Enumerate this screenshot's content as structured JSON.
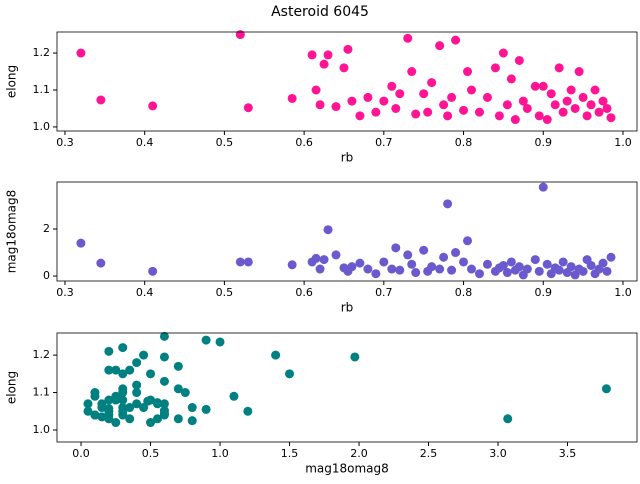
{
  "chart_data": [
    {
      "type": "scatter",
      "title": "Asteroid 6045",
      "xlabel": "rb",
      "ylabel": "elong",
      "color": "#ff1493",
      "xlim": [
        0.29,
        1.0176
      ],
      "ylim": [
        0.989,
        1.257
      ],
      "xticks": [
        0.3,
        0.4,
        0.5,
        0.6,
        0.7,
        0.8,
        0.9,
        {
          "value": 1,
          "label": "1.0"
        }
      ],
      "yticks": [
        {
          "value": 1,
          "label": "1.0"
        },
        1.1,
        1.2
      ],
      "x": [
        0.32,
        0.345,
        0.41,
        0.52,
        0.53,
        0.585,
        0.61,
        0.615,
        0.62,
        0.625,
        0.63,
        0.64,
        0.65,
        0.655,
        0.66,
        0.67,
        0.68,
        0.69,
        0.7,
        0.71,
        0.715,
        0.72,
        0.73,
        0.735,
        0.74,
        0.75,
        0.755,
        0.76,
        0.77,
        0.775,
        0.78,
        0.785,
        0.79,
        0.8,
        0.805,
        0.81,
        0.82,
        0.83,
        0.84,
        0.845,
        0.85,
        0.855,
        0.86,
        0.865,
        0.87,
        0.875,
        0.88,
        0.89,
        0.895,
        0.9,
        0.905,
        0.91,
        0.915,
        0.92,
        0.925,
        0.93,
        0.935,
        0.94,
        0.945,
        0.95,
        0.955,
        0.96,
        0.965,
        0.97,
        0.975,
        0.98,
        0.985
      ],
      "y": [
        1.2,
        1.073,
        1.057,
        1.25,
        1.052,
        1.077,
        1.195,
        1.1,
        1.06,
        1.17,
        1.195,
        1.055,
        1.16,
        1.21,
        1.07,
        1.03,
        1.08,
        1.04,
        1.07,
        1.11,
        1.05,
        1.09,
        1.24,
        1.15,
        1.035,
        1.09,
        1.04,
        1.12,
        1.22,
        1.06,
        1.03,
        1.08,
        1.235,
        1.045,
        1.15,
        1.1,
        1.04,
        1.08,
        1.16,
        1.03,
        1.2,
        1.06,
        1.13,
        1.02,
        1.18,
        1.07,
        1.05,
        1.11,
        1.03,
        1.11,
        1.02,
        1.09,
        1.06,
        1.16,
        1.04,
        1.07,
        1.1,
        1.05,
        1.15,
        1.08,
        1.03,
        1.06,
        1.1,
        1.04,
        1.07,
        1.05,
        1.025
      ]
    },
    {
      "type": "scatter",
      "xlabel": "rb",
      "ylabel": "mag18omag8",
      "color": "#6a5acd",
      "xlim": [
        0.29,
        1.0176
      ],
      "ylim": [
        -0.21,
        4.0
      ],
      "xticks": [
        0.3,
        0.4,
        0.5,
        0.6,
        0.7,
        0.8,
        0.9,
        {
          "value": 1,
          "label": "1.0"
        }
      ],
      "yticks": [
        0,
        2
      ],
      "x": [
        0.32,
        0.345,
        0.41,
        0.52,
        0.53,
        0.585,
        0.61,
        0.615,
        0.62,
        0.625,
        0.63,
        0.64,
        0.65,
        0.655,
        0.66,
        0.67,
        0.68,
        0.69,
        0.7,
        0.71,
        0.715,
        0.72,
        0.73,
        0.735,
        0.74,
        0.75,
        0.755,
        0.76,
        0.77,
        0.775,
        0.78,
        0.785,
        0.79,
        0.8,
        0.805,
        0.81,
        0.82,
        0.83,
        0.84,
        0.845,
        0.85,
        0.855,
        0.86,
        0.865,
        0.87,
        0.875,
        0.88,
        0.89,
        0.895,
        0.9,
        0.905,
        0.91,
        0.915,
        0.92,
        0.925,
        0.93,
        0.935,
        0.94,
        0.945,
        0.95,
        0.955,
        0.96,
        0.965,
        0.97,
        0.975,
        0.98,
        0.985
      ],
      "y": [
        1.4,
        0.55,
        0.2,
        0.6,
        0.6,
        0.48,
        0.6,
        0.75,
        0.3,
        0.7,
        1.97,
        0.9,
        0.35,
        0.2,
        0.4,
        0.55,
        0.3,
        0.1,
        0.6,
        0.3,
        1.2,
        0.25,
        0.9,
        0.5,
        0.15,
        1.1,
        0.2,
        0.4,
        0.3,
        0.8,
        3.07,
        0.25,
        1.0,
        0.6,
        1.5,
        0.3,
        0.1,
        0.5,
        0.2,
        0.35,
        0.45,
        0.15,
        0.6,
        0.25,
        0.4,
        0.05,
        0.3,
        0.7,
        0.2,
        3.78,
        0.5,
        0.1,
        0.35,
        0.25,
        0.6,
        0.15,
        0.4,
        0.05,
        0.3,
        0.2,
        0.7,
        0.45,
        0.1,
        0.3,
        0.55,
        0.2,
        0.8
      ]
    },
    {
      "type": "scatter",
      "xlabel": "mag18omag8",
      "ylabel": "elong",
      "color": "#008080",
      "xlim": [
        -0.173,
        4.0
      ],
      "ylim": [
        0.968,
        1.259
      ],
      "xticks": [
        {
          "value": 0,
          "label": "0.0"
        },
        0.5,
        {
          "value": 1,
          "label": "1.0"
        },
        1.5,
        {
          "value": 2,
          "label": "2.0"
        },
        2.5,
        {
          "value": 3,
          "label": "3.0"
        },
        3.5
      ],
      "yticks": [
        {
          "value": 1,
          "label": "1.0"
        },
        1.1,
        1.2
      ],
      "x": [
        1.4,
        0.55,
        0.2,
        0.6,
        0.6,
        0.48,
        0.6,
        0.75,
        0.3,
        0.7,
        1.97,
        0.9,
        0.35,
        0.2,
        0.4,
        0.55,
        0.3,
        0.1,
        0.6,
        0.3,
        1.2,
        0.25,
        0.9,
        0.5,
        0.15,
        1.1,
        0.2,
        0.4,
        0.3,
        0.8,
        3.07,
        0.25,
        1.0,
        0.6,
        1.5,
        0.3,
        0.1,
        0.5,
        0.2,
        0.35,
        0.45,
        0.15,
        0.6,
        0.25,
        0.4,
        0.05,
        0.3,
        0.7,
        0.2,
        3.78,
        0.5,
        0.1,
        0.35,
        0.25,
        0.6,
        0.15,
        0.4,
        0.05,
        0.3,
        0.2,
        0.7,
        0.45,
        0.1,
        0.3,
        0.55,
        0.2,
        0.8
      ],
      "y": [
        1.2,
        1.073,
        1.057,
        1.25,
        1.052,
        1.077,
        1.195,
        1.1,
        1.06,
        1.17,
        1.195,
        1.055,
        1.16,
        1.21,
        1.07,
        1.03,
        1.08,
        1.04,
        1.07,
        1.11,
        1.05,
        1.09,
        1.24,
        1.15,
        1.035,
        1.09,
        1.04,
        1.12,
        1.22,
        1.06,
        1.03,
        1.08,
        1.235,
        1.045,
        1.15,
        1.1,
        1.04,
        1.08,
        1.16,
        1.03,
        1.2,
        1.06,
        1.13,
        1.02,
        1.18,
        1.07,
        1.05,
        1.11,
        1.03,
        1.11,
        1.02,
        1.09,
        1.06,
        1.16,
        1.04,
        1.07,
        1.1,
        1.05,
        1.15,
        1.08,
        1.03,
        1.06,
        1.1,
        1.04,
        1.07,
        1.05,
        1.025
      ]
    }
  ]
}
